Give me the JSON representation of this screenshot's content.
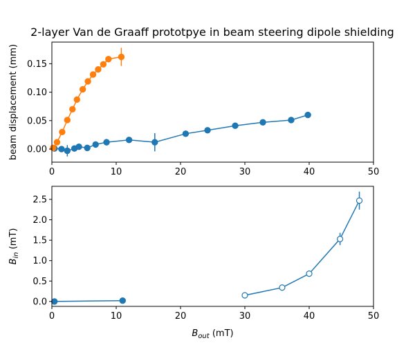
{
  "figure": {
    "title": "2-layer Van de Graaff prototpye in beam steering dipole shielding"
  },
  "chart_data": [
    {
      "type": "scatter",
      "title": "2-layer Van de Graaff prototpye in beam steering dipole shielding",
      "xlabel": "",
      "ylabel": "beam displacement (mm)",
      "xlim": [
        0,
        50
      ],
      "ylim": [
        -0.023,
        0.188
      ],
      "xticks": [
        0,
        10,
        20,
        30,
        40,
        50
      ],
      "xtick_labels": [
        "0",
        "10",
        "20",
        "30",
        "40",
        "50"
      ],
      "yticks": [
        0.0,
        0.05,
        0.1,
        0.15
      ],
      "ytick_labels": [
        "0.00",
        "0.05",
        "0.10",
        "0.15"
      ],
      "grid": false,
      "series": [
        {
          "color": "#1f77b4",
          "marker": "filled-circle",
          "line": true,
          "points": [
            {
              "x": 0.4,
              "y": 0.001,
              "yerr": 0.002
            },
            {
              "x": 1.5,
              "y": 0.0,
              "yerr": 0.003
            },
            {
              "x": 2.4,
              "y": -0.003,
              "yerr": 0.01
            },
            {
              "x": 3.5,
              "y": 0.001,
              "yerr": 0.003
            },
            {
              "x": 4.2,
              "y": 0.004,
              "yerr": 0.005
            },
            {
              "x": 5.5,
              "y": 0.002,
              "yerr": 0.003
            },
            {
              "x": 6.8,
              "y": 0.008,
              "yerr": 0.003
            },
            {
              "x": 8.5,
              "y": 0.012,
              "yerr": 0.003
            },
            {
              "x": 12.0,
              "y": 0.016,
              "yerr": 0.003
            },
            {
              "x": 16.0,
              "y": 0.012,
              "yerr": 0.016
            },
            {
              "x": 20.8,
              "y": 0.027,
              "yerr": 0.003
            },
            {
              "x": 24.2,
              "y": 0.033,
              "yerr": 0.003
            },
            {
              "x": 28.5,
              "y": 0.041,
              "yerr": 0.003
            },
            {
              "x": 32.8,
              "y": 0.047,
              "yerr": 0.005
            },
            {
              "x": 37.2,
              "y": 0.051,
              "yerr": 0.003
            },
            {
              "x": 39.8,
              "y": 0.06,
              "yerr": 0.004
            }
          ]
        },
        {
          "color": "#ff7f0e",
          "marker": "filled-circle",
          "line": true,
          "points": [
            {
              "x": 0.2,
              "y": 0.002,
              "yerr": 0.002
            },
            {
              "x": 0.8,
              "y": 0.012,
              "yerr": 0.002
            },
            {
              "x": 1.6,
              "y": 0.03,
              "yerr": 0.002
            },
            {
              "x": 2.4,
              "y": 0.051,
              "yerr": 0.002
            },
            {
              "x": 3.2,
              "y": 0.07,
              "yerr": 0.002
            },
            {
              "x": 3.9,
              "y": 0.087,
              "yerr": 0.002
            },
            {
              "x": 4.8,
              "y": 0.105,
              "yerr": 0.002
            },
            {
              "x": 5.6,
              "y": 0.119,
              "yerr": 0.002
            },
            {
              "x": 6.4,
              "y": 0.131,
              "yerr": 0.002
            },
            {
              "x": 7.2,
              "y": 0.14,
              "yerr": 0.002
            },
            {
              "x": 8.0,
              "y": 0.149,
              "yerr": 0.002
            },
            {
              "x": 8.8,
              "y": 0.158,
              "yerr": 0.002
            },
            {
              "x": 10.8,
              "y": 0.162,
              "yerr": 0.016
            }
          ]
        }
      ]
    },
    {
      "type": "scatter",
      "title": "",
      "xlabel": "B_out (mT)",
      "xlabel_parts": {
        "base": "B",
        "sub": "out",
        "rest": " (mT)"
      },
      "ylabel": "B_in (mT)",
      "ylabel_parts": {
        "base": "B",
        "sub": "in",
        "rest": " (mT)"
      },
      "xlim": [
        0,
        50
      ],
      "ylim": [
        -0.12,
        2.82
      ],
      "xticks": [
        0,
        10,
        20,
        30,
        40,
        50
      ],
      "xtick_labels": [
        "0",
        "10",
        "20",
        "30",
        "40",
        "50"
      ],
      "yticks": [
        0.0,
        0.5,
        1.0,
        1.5,
        2.0,
        2.5
      ],
      "ytick_labels": [
        "0.0",
        "0.5",
        "1.0",
        "1.5",
        "2.0",
        "2.5"
      ],
      "grid": false,
      "series": [
        {
          "color": "#1f77b4",
          "marker": "filled-circle",
          "line": true,
          "points": [
            {
              "x": 0.4,
              "y": 0.0,
              "yerr": 0.01
            },
            {
              "x": 11.0,
              "y": 0.02,
              "yerr": 0.01
            }
          ]
        },
        {
          "color": "#1f77b4",
          "marker": "open-circle",
          "line": true,
          "points": [
            {
              "x": 30.0,
              "y": 0.15,
              "yerr": 0.02
            },
            {
              "x": 35.8,
              "y": 0.34,
              "yerr": 0.03
            },
            {
              "x": 40.0,
              "y": 0.68,
              "yerr": 0.04
            },
            {
              "x": 44.8,
              "y": 1.53,
              "yerr": 0.15
            },
            {
              "x": 47.8,
              "y": 2.47,
              "yerr": 0.22
            }
          ]
        }
      ]
    }
  ]
}
